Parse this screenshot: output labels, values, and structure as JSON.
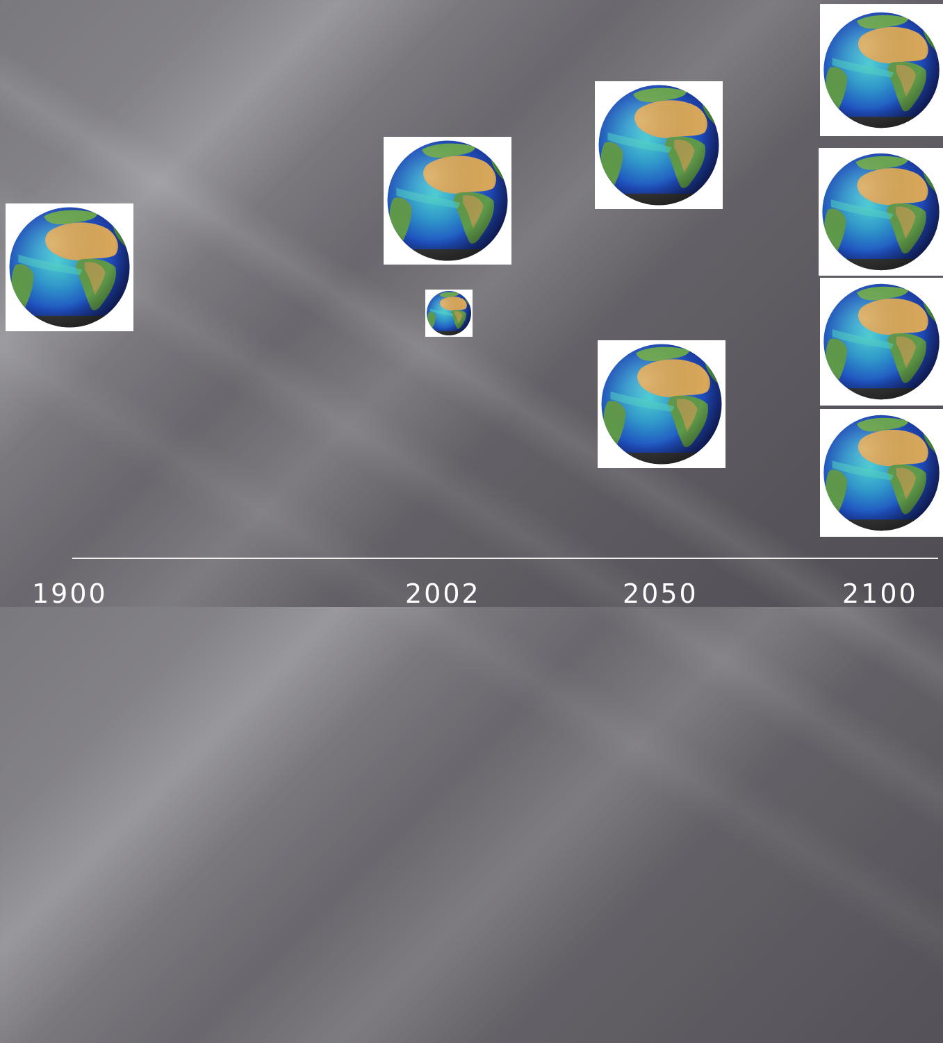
{
  "slide": {
    "years": [
      {
        "label": "1900"
      },
      {
        "label": "2002"
      },
      {
        "label": "2050"
      },
      {
        "label": "2100"
      }
    ],
    "globes_per_year": {
      "1900": 1,
      "2002": 2,
      "2050": 2,
      "2100": 4
    }
  },
  "colors": {
    "ocean_deep": "#1e3fae",
    "ocean_light": "#36c3d9",
    "land_desert": "#d9a85a",
    "land_green": "#5f9a4a",
    "timeline": "#f0f0f0",
    "text": "#ffffff"
  },
  "icons": [
    "earth-globe-icon"
  ]
}
